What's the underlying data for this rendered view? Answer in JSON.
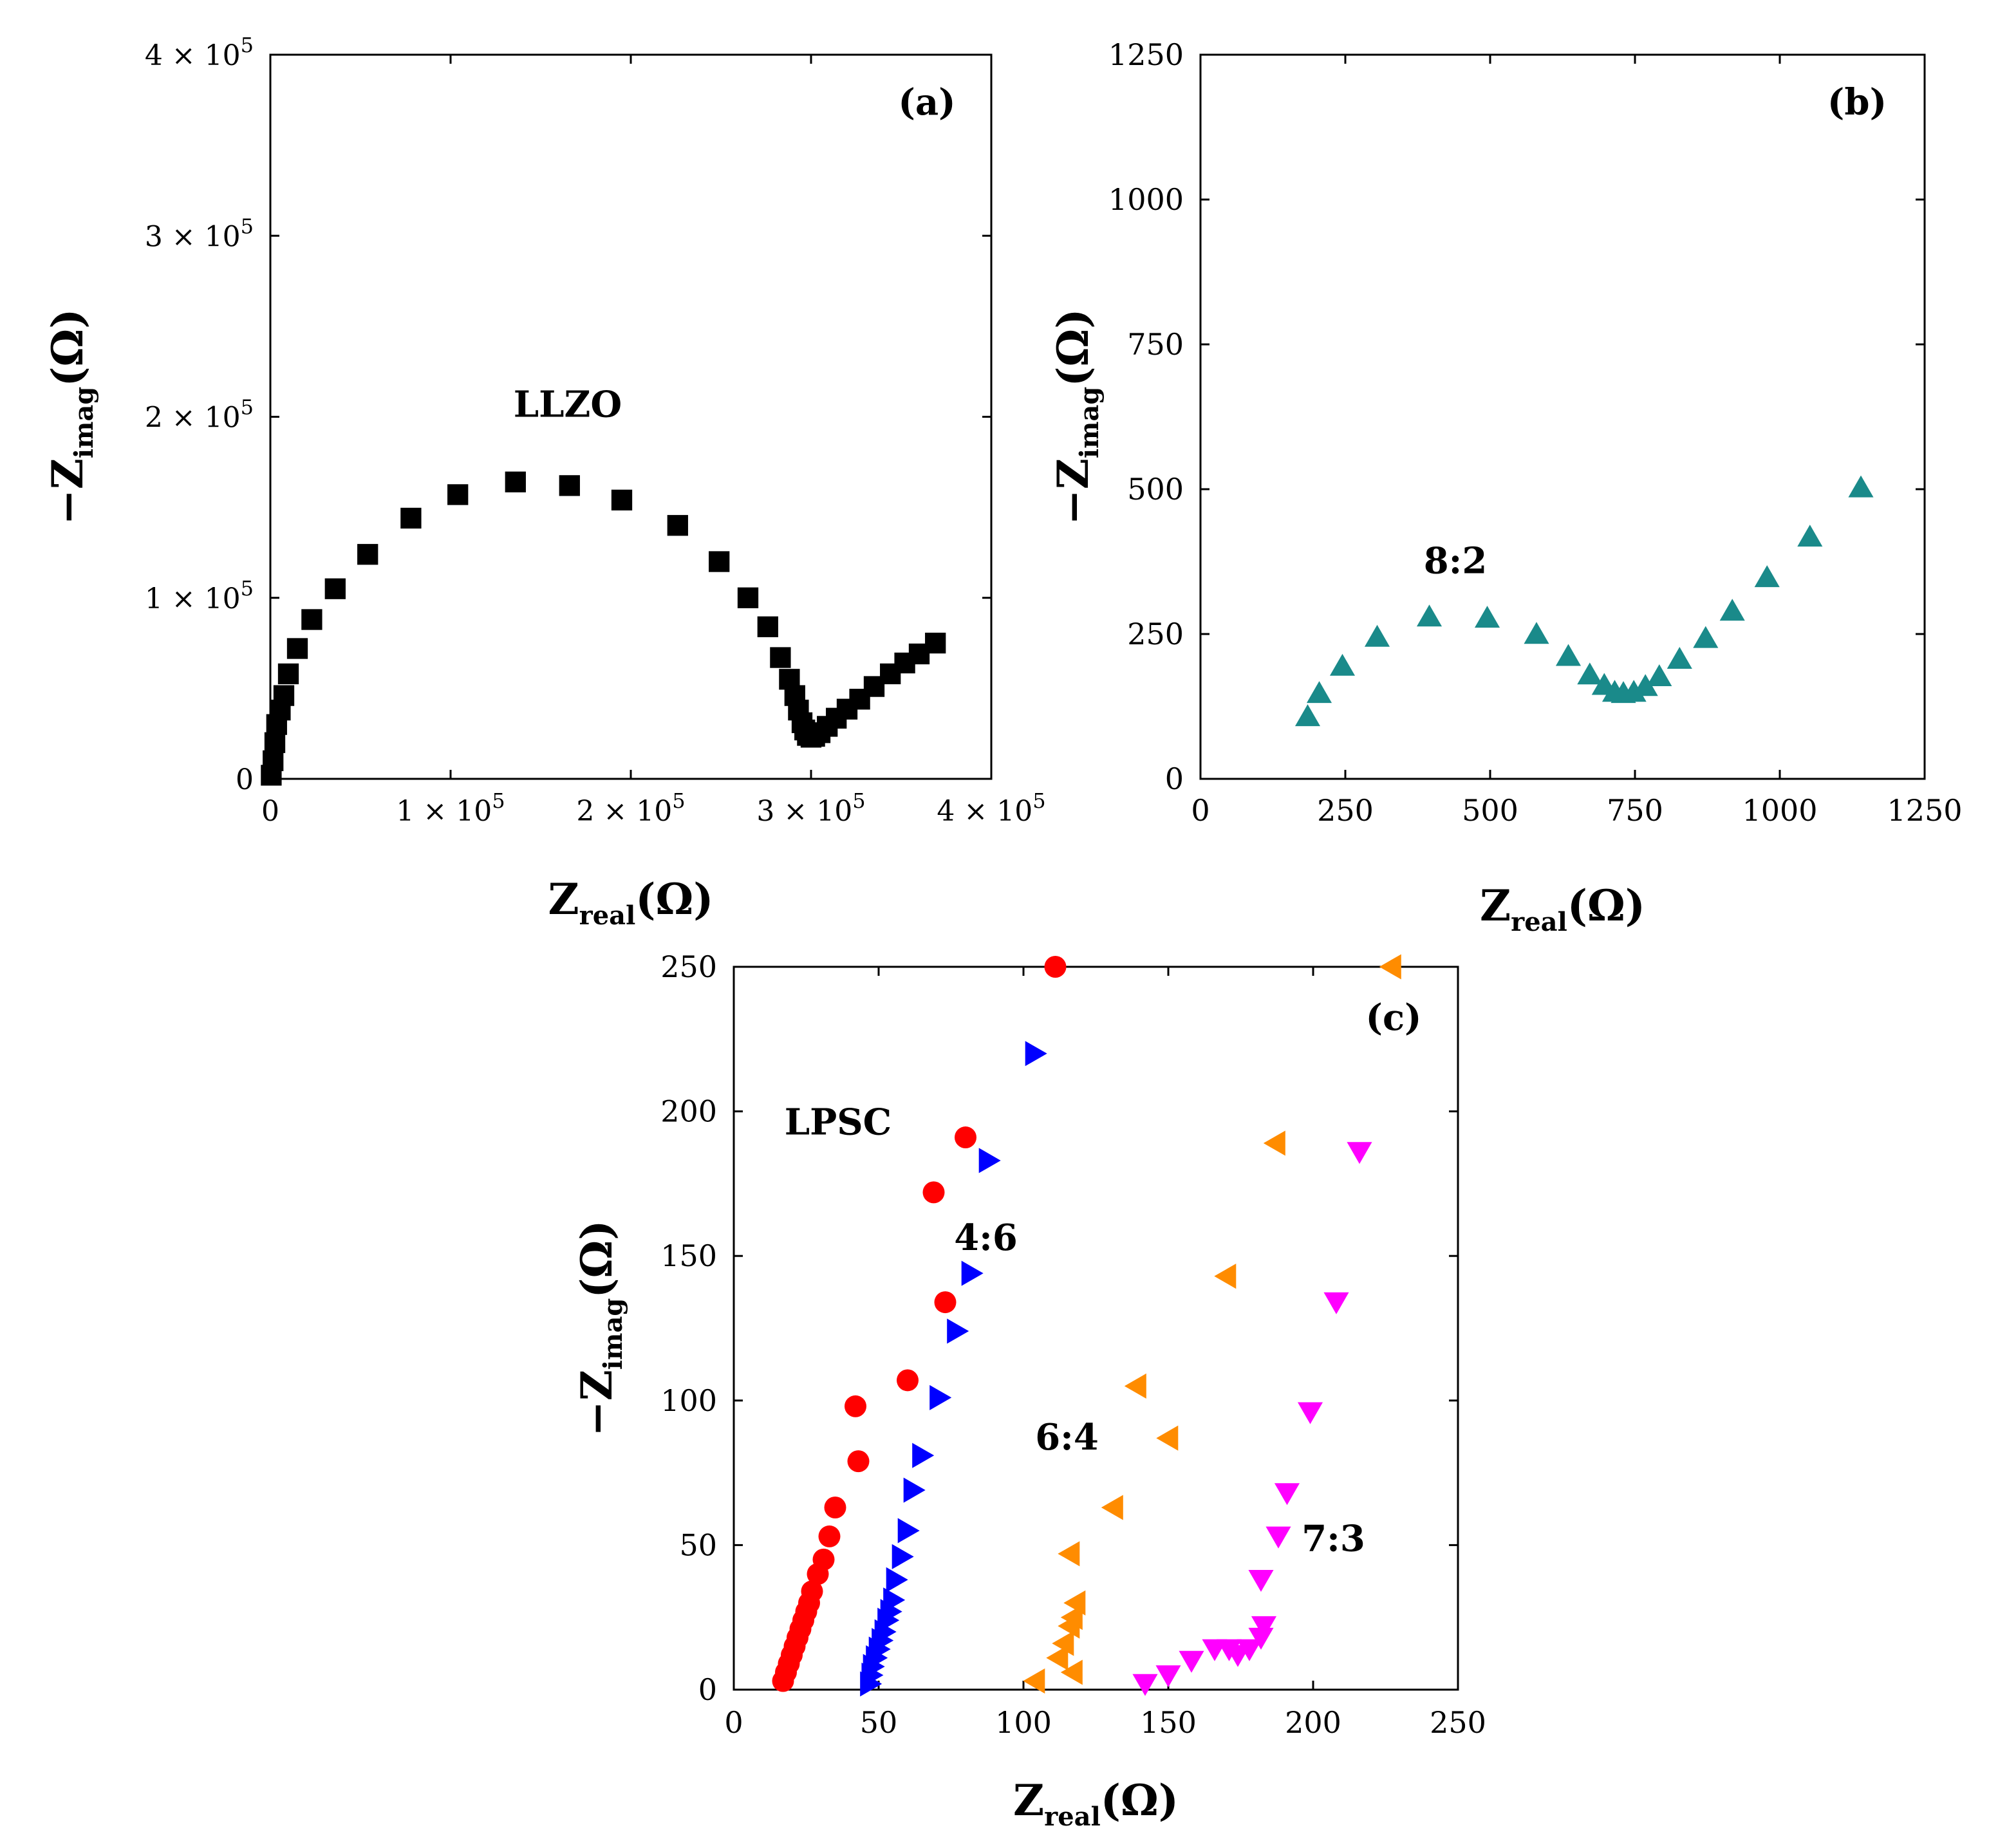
{
  "chart_data": [
    {
      "panel": "(a)",
      "type": "scatter",
      "marker": "square",
      "xlabel": {
        "main": "Z",
        "sub": "real",
        "unit": "(Ω)"
      },
      "ylabel": {
        "prefix": "−Z",
        "sub": "imag",
        "unit": "(Ω)"
      },
      "xlim": [
        0,
        400000
      ],
      "ylim": [
        0,
        400000
      ],
      "xticks": [
        0,
        100000,
        200000,
        300000,
        400000
      ],
      "yticks": [
        0,
        100000,
        200000,
        300000,
        400000
      ],
      "xtick_labels": [
        {
          "mantissa": "0",
          "exp": ""
        },
        {
          "mantissa": "1 × 10",
          "exp": "5"
        },
        {
          "mantissa": "2 × 10",
          "exp": "5"
        },
        {
          "mantissa": "3 × 10",
          "exp": "5"
        },
        {
          "mantissa": "4 × 10",
          "exp": "5"
        }
      ],
      "ytick_labels": [
        {
          "mantissa": "0",
          "exp": ""
        },
        {
          "mantissa": "1 × 10",
          "exp": "5"
        },
        {
          "mantissa": "2 × 10",
          "exp": "5"
        },
        {
          "mantissa": "3 × 10",
          "exp": "5"
        },
        {
          "mantissa": "4 × 10",
          "exp": "5"
        }
      ],
      "series": [
        {
          "name": "LLZO",
          "label": "LLZO",
          "label_at": [
            165000,
            200000
          ],
          "color": "#000000",
          "points": [
            [
              500,
              2000
            ],
            [
              1500,
              10000
            ],
            [
              2500,
              20000
            ],
            [
              3500,
              30000
            ],
            [
              5500,
              38000
            ],
            [
              7500,
              46000
            ],
            [
              10000,
              58000
            ],
            [
              15000,
              72000
            ],
            [
              23000,
              88000
            ],
            [
              36000,
              105000
            ],
            [
              54000,
              124000
            ],
            [
              78000,
              144000
            ],
            [
              104000,
              157000
            ],
            [
              136000,
              164000
            ],
            [
              166000,
              162000
            ],
            [
              195000,
              154000
            ],
            [
              226000,
              140000
            ],
            [
              249000,
              120000
            ],
            [
              265000,
              100000
            ],
            [
              276000,
              84000
            ],
            [
              283000,
              67000
            ],
            [
              288000,
              55000
            ],
            [
              291000,
              46000
            ],
            [
              293000,
              38000
            ],
            [
              295000,
              31000
            ],
            [
              296500,
              27000
            ],
            [
              298000,
              24000
            ],
            [
              300000,
              23000
            ],
            [
              302000,
              23500
            ],
            [
              305000,
              25500
            ],
            [
              309000,
              29000
            ],
            [
              314000,
              33500
            ],
            [
              320000,
              38500
            ],
            [
              327000,
              44000
            ],
            [
              335000,
              51000
            ],
            [
              344000,
              58000
            ],
            [
              352000,
              64000
            ],
            [
              360000,
              69000
            ],
            [
              369000,
              75000
            ]
          ]
        }
      ],
      "title": "(a)"
    },
    {
      "panel": "(b)",
      "type": "scatter",
      "marker": "triangle-up",
      "xlabel": {
        "main": "Z",
        "sub": "real",
        "unit": "(Ω)"
      },
      "ylabel": {
        "prefix": "−Z",
        "sub": "imag",
        "unit": "(Ω)"
      },
      "xlim": [
        0,
        1250
      ],
      "ylim": [
        0,
        1250
      ],
      "xticks": [
        0,
        250,
        500,
        750,
        1000,
        1250
      ],
      "yticks": [
        0,
        250,
        500,
        750,
        1000,
        1250
      ],
      "xtick_labels": [
        "0",
        "250",
        "500",
        "750",
        "1000",
        "1250"
      ],
      "ytick_labels": [
        "0",
        "250",
        "500",
        "750",
        "1000",
        "1250"
      ],
      "series": [
        {
          "name": "8:2",
          "label": "8:2",
          "label_at": [
            440,
            355
          ],
          "color": "#1a8a8a",
          "points": [
            [
              185,
              108
            ],
            [
              205,
              148
            ],
            [
              245,
              195
            ],
            [
              305,
              245
            ],
            [
              395,
              280
            ],
            [
              495,
              278
            ],
            [
              580,
              250
            ],
            [
              635,
              212
            ],
            [
              672,
              180
            ],
            [
              697,
              162
            ],
            [
              715,
              150
            ],
            [
              730,
              148
            ],
            [
              748,
              150
            ],
            [
              768,
              160
            ],
            [
              792,
              177
            ],
            [
              827,
              207
            ],
            [
              872,
              243
            ],
            [
              918,
              290
            ],
            [
              978,
              348
            ],
            [
              1052,
              418
            ],
            [
              1140,
              503
            ]
          ]
        }
      ],
      "title": "(b)"
    },
    {
      "panel": "(c)",
      "type": "scatter",
      "xlabel": {
        "main": "Z",
        "sub": "real",
        "unit": "(Ω)"
      },
      "ylabel": {
        "prefix": "−Z",
        "sub": "imag",
        "unit": "(Ω)"
      },
      "xlim": [
        0,
        250
      ],
      "ylim": [
        0,
        250
      ],
      "xticks": [
        0,
        50,
        100,
        150,
        200,
        250
      ],
      "yticks": [
        0,
        50,
        100,
        150,
        200,
        250
      ],
      "xtick_labels": [
        "0",
        "50",
        "100",
        "150",
        "200",
        "250"
      ],
      "ytick_labels": [
        "0",
        "50",
        "100",
        "150",
        "200",
        "250"
      ],
      "series": [
        {
          "name": "LPSC",
          "label": "LPSC",
          "label_at": [
            36,
            192
          ],
          "marker": "circle",
          "color": "#ff0000",
          "points": [
            [
              17,
              3
            ],
            [
              18,
              6
            ],
            [
              19,
              9
            ],
            [
              20,
              12
            ],
            [
              21,
              15
            ],
            [
              22,
              18
            ],
            [
              23,
              21
            ],
            [
              24,
              24
            ],
            [
              25,
              27
            ],
            [
              26,
              30
            ],
            [
              27,
              34
            ],
            [
              29,
              40
            ],
            [
              31,
              45
            ],
            [
              33,
              53
            ],
            [
              35,
              63
            ],
            [
              43,
              79
            ],
            [
              42,
              98
            ],
            [
              60,
              107
            ],
            [
              73,
              134
            ],
            [
              69,
              172
            ],
            [
              80,
              191
            ],
            [
              111,
              250
            ]
          ]
        },
        {
          "name": "4:6",
          "label": "4:6",
          "label_at": [
            87,
            152
          ],
          "marker": "triangle-right",
          "color": "#0000ff",
          "points": [
            [
              47,
              2
            ],
            [
              47.5,
              5
            ],
            [
              48,
              8
            ],
            [
              49,
              11
            ],
            [
              50,
              14
            ],
            [
              51,
              17
            ],
            [
              52,
              20
            ],
            [
              53,
              24
            ],
            [
              54,
              27
            ],
            [
              55,
              31
            ],
            [
              56,
              38
            ],
            [
              58,
              46
            ],
            [
              60,
              55
            ],
            [
              62,
              69
            ],
            [
              65,
              81
            ],
            [
              71,
              101
            ],
            [
              77,
              124
            ],
            [
              82,
              144
            ],
            [
              88,
              183
            ],
            [
              104,
              220
            ]
          ]
        },
        {
          "name": "6:4",
          "label": "6:4",
          "label_at": [
            115,
            83
          ],
          "marker": "triangle-left",
          "color": "#ff8c00",
          "points": [
            [
              104,
              3
            ],
            [
              117,
              6
            ],
            [
              112,
              11
            ],
            [
              114,
              16
            ],
            [
              116,
              22
            ],
            [
              117,
              25
            ],
            [
              118,
              30
            ],
            [
              116,
              47
            ],
            [
              131,
              63
            ],
            [
              150,
              87
            ],
            [
              139,
              105
            ],
            [
              170,
              143
            ],
            [
              187,
              189
            ],
            [
              227,
              250
            ]
          ]
        },
        {
          "name": "7:3",
          "label": "7:3",
          "label_at": [
            207,
            48
          ],
          "marker": "triangle-down",
          "color": "#ff00ff",
          "points": [
            [
              142,
              2
            ],
            [
              150,
              5
            ],
            [
              158,
              10
            ],
            [
              166,
              14
            ],
            [
              171,
              14
            ],
            [
              174,
              12
            ],
            [
              178,
              14
            ],
            [
              182,
              18
            ],
            [
              183,
              22
            ],
            [
              182,
              38
            ],
            [
              188,
              53
            ],
            [
              191,
              68
            ],
            [
              199,
              96
            ],
            [
              208,
              134
            ],
            [
              216,
              186
            ]
          ]
        }
      ],
      "title": "(c)"
    }
  ]
}
